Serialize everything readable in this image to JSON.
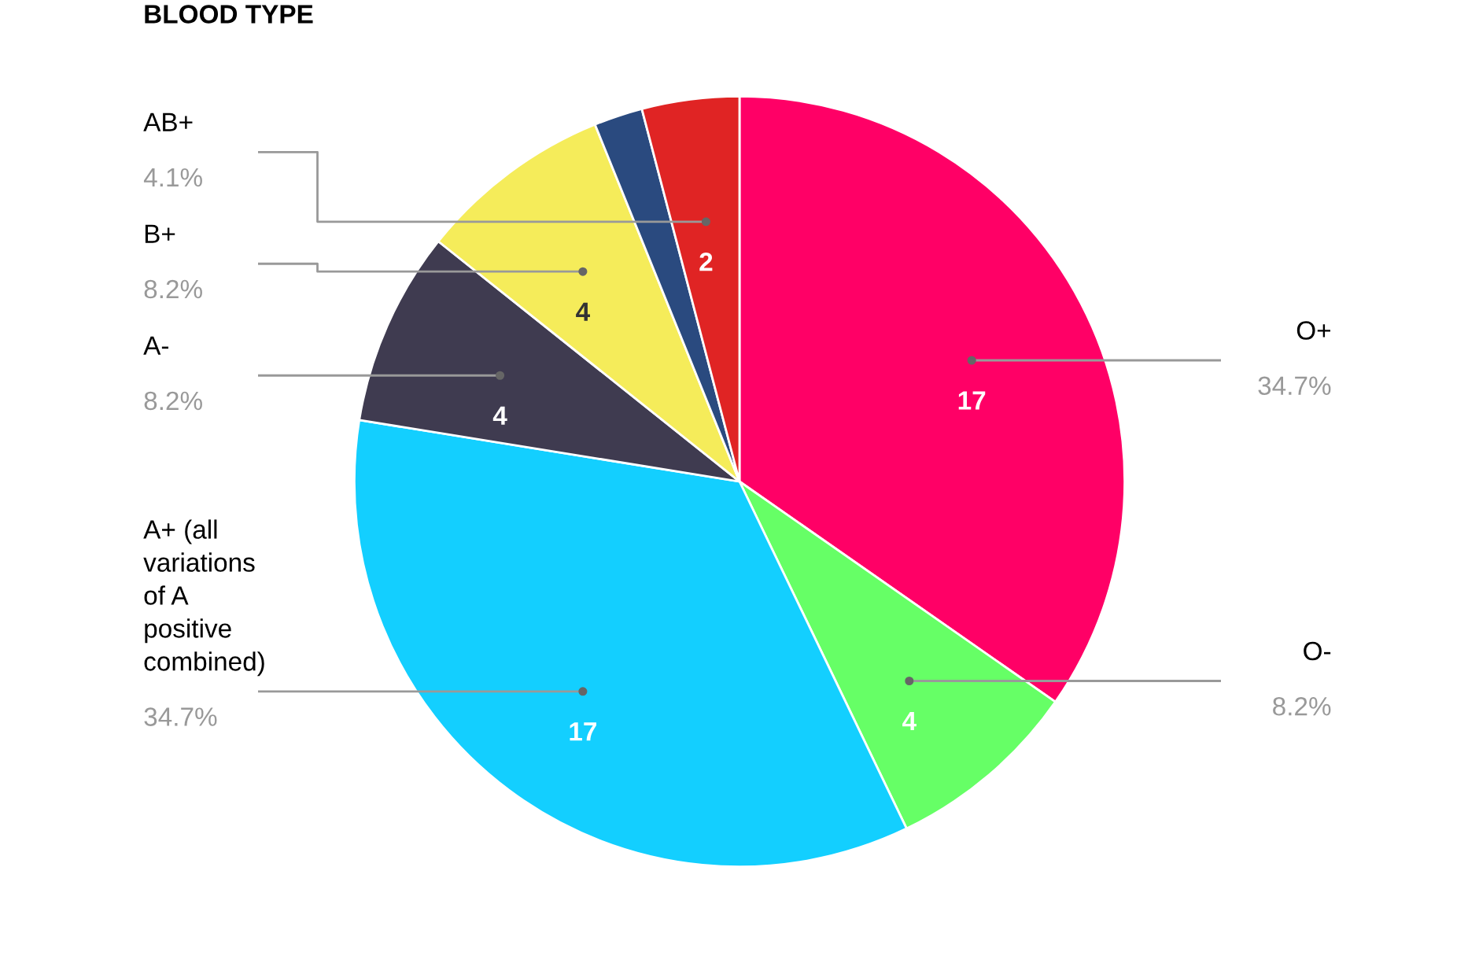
{
  "chart_data": {
    "type": "pie",
    "title": "BLOOD TYPE",
    "categories": [
      "O+",
      "O-",
      "A+ (all\nvariations\nof A\npositive\ncombined)",
      "A-",
      "B+",
      null,
      "AB+"
    ],
    "values": [
      17,
      4,
      17,
      4,
      4,
      1,
      2
    ],
    "colors": [
      "#ff0066",
      "#66ff66",
      "#13cfff",
      "#3f3b50",
      "#f5ec5a",
      "#2a4a7f",
      "#e02424"
    ],
    "value_labels": [
      "17",
      "4",
      "17",
      "4",
      "4",
      null,
      "2"
    ],
    "annotations": [
      {
        "text": "34.7%",
        "x": "O+"
      },
      {
        "text": "8.2%",
        "x": "O-"
      },
      {
        "text": "34.7%",
        "x": "A+ (all\nvariations\nof A\npositive\ncombined)"
      },
      {
        "text": "8.2%",
        "x": "A-"
      },
      {
        "text": "8.2%",
        "x": "B+"
      },
      {
        "text": "4.1%",
        "x": "AB+"
      }
    ],
    "legend": false
  }
}
